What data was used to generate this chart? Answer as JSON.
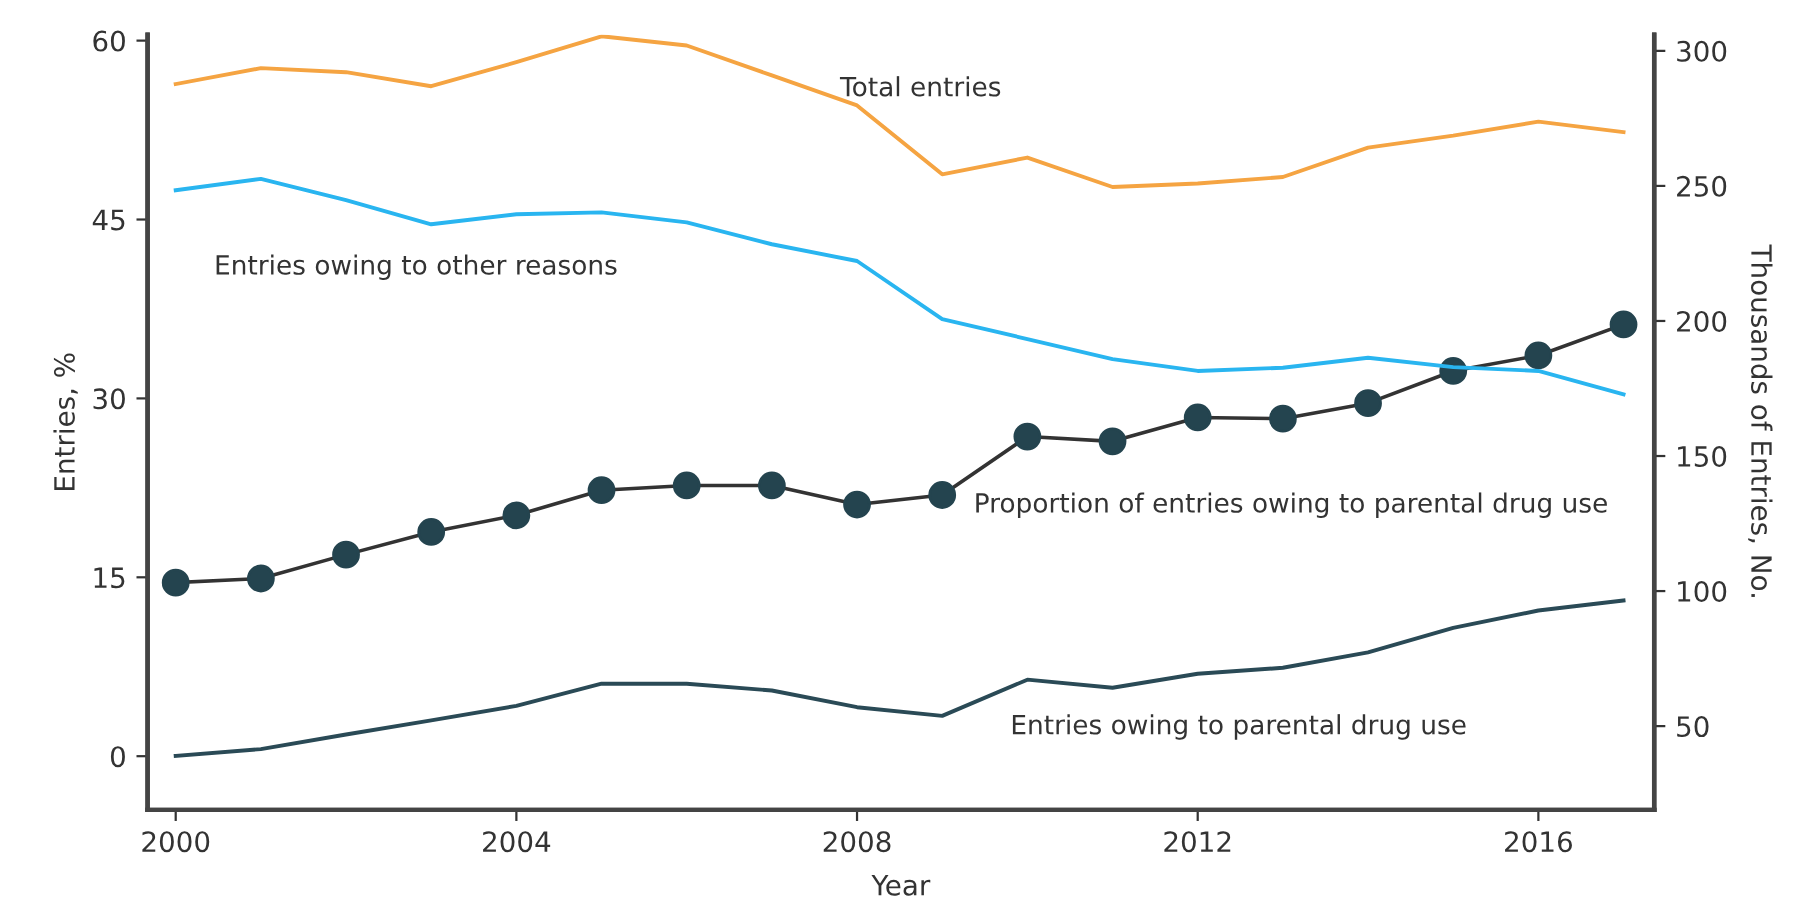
{
  "chart_data": {
    "type": "line",
    "xlabel": "Year",
    "ylabel": "Entries, %",
    "y2label": "Thousands of Entries, No.",
    "x": [
      2000,
      2001,
      2002,
      2003,
      2004,
      2005,
      2006,
      2007,
      2008,
      2009,
      2010,
      2011,
      2012,
      2013,
      2014,
      2015,
      2016,
      2017
    ],
    "xlim": [
      1999.67,
      2017.36
    ],
    "xticks": [
      2000,
      2004,
      2008,
      2012,
      2016
    ],
    "ylim": [
      -4.5,
      60.5
    ],
    "yticks": [
      0,
      15,
      30,
      45,
      60
    ],
    "y2lim": [
      19,
      306
    ],
    "y2ticks": [
      50,
      100,
      150,
      200,
      250,
      300
    ],
    "grid": false,
    "legend": false,
    "series": [
      {
        "name": "Total entries",
        "color": "#f5a442",
        "axis": "y2",
        "marker": "none",
        "values": [
          287.7,
          293.6,
          292.1,
          286.9,
          295.8,
          305.4,
          302,
          290.9,
          279.8,
          254.3,
          260.5,
          249.6,
          250.9,
          253.3,
          264.2,
          268.6,
          273.8,
          269.9
        ]
      },
      {
        "name": "Entries owing to other reasons",
        "color": "#29b5f0",
        "axis": "y2",
        "marker": "none",
        "values": [
          248.4,
          252.6,
          244.7,
          235.8,
          239.5,
          240.2,
          236.5,
          228.4,
          222.2,
          200.7,
          193.3,
          185.9,
          181.5,
          182.7,
          186.4,
          182.9,
          181.5,
          172.8
        ]
      },
      {
        "name": "Proportion of entries owing to parental drug use",
        "color": "#24444f",
        "axis": "y",
        "marker": "circle",
        "values": [
          14.55,
          14.9,
          16.9,
          18.8,
          20.2,
          22.3,
          22.7,
          22.7,
          21.1,
          21.9,
          26.8,
          26.4,
          28.4,
          28.3,
          29.6,
          32.3,
          33.6,
          36.2
        ]
      },
      {
        "name": "Entries owing to parental drug use",
        "color": "#2a4a56",
        "axis": "y2",
        "marker": "none",
        "values": [
          39,
          41.5,
          46.9,
          52.1,
          57.5,
          65.7,
          65.7,
          63.2,
          57,
          53.8,
          67.2,
          64.2,
          69.4,
          71.6,
          77.3,
          86.4,
          92.8,
          96.5
        ]
      }
    ]
  }
}
